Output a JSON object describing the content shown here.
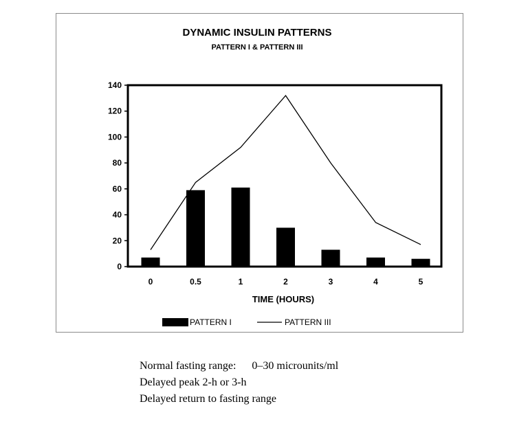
{
  "chart_data": {
    "type": "bar",
    "title": "DYNAMIC INSULIN PATTERNS",
    "subtitle": "PATTERN I & PATTERN III",
    "xlabel": "TIME (HOURS)",
    "ylabel": "",
    "categories": [
      "0",
      "0.5",
      "1",
      "2",
      "3",
      "4",
      "5"
    ],
    "ylim": [
      0,
      140
    ],
    "yticks": [
      0,
      20,
      40,
      60,
      80,
      100,
      120,
      140
    ],
    "series": [
      {
        "name": "PATTERN I",
        "kind": "bar",
        "values": [
          7,
          59,
          61,
          30,
          13,
          7,
          6
        ],
        "color": "#000000"
      },
      {
        "name": "PATTERN III",
        "kind": "line",
        "values": [
          13,
          65,
          92,
          132,
          80,
          34,
          17
        ],
        "color": "#000000"
      }
    ],
    "legend_position": "bottom",
    "grid": false
  },
  "notes": [
    {
      "label": "Normal fasting range:",
      "value": "0–30 microunits/ml"
    },
    {
      "label": "Delayed peak 2-h or 3-h",
      "value": ""
    },
    {
      "label": "Delayed return to fasting range",
      "value": ""
    }
  ]
}
